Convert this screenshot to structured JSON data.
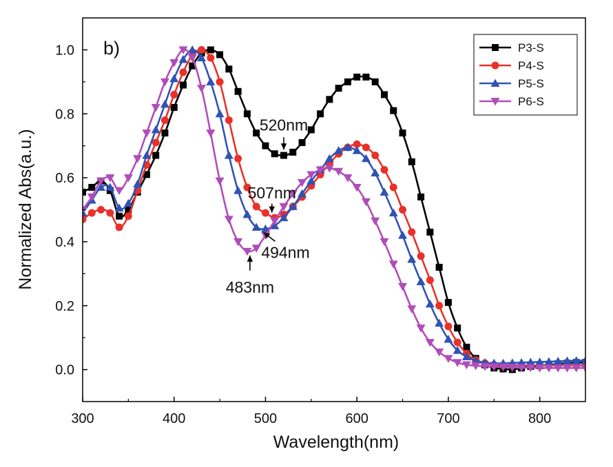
{
  "chart_data": {
    "type": "line",
    "panel_label": "b)",
    "xlabel": "Wavelength(nm)",
    "ylabel": "Normalized Abs(a.u.)",
    "xlim": [
      300,
      850
    ],
    "ylim": [
      -0.1,
      1.1
    ],
    "xticks": [
      300,
      400,
      500,
      600,
      700,
      800
    ],
    "yticks": [
      0.0,
      0.2,
      0.4,
      0.6,
      0.8,
      1.0
    ],
    "xtick_labels": [
      "300",
      "400",
      "500",
      "600",
      "700",
      "800"
    ],
    "ytick_labels": [
      "0.0",
      "0.2",
      "0.4",
      "0.6",
      "0.8",
      "1.0"
    ],
    "grid": false,
    "legend_position": "top-right",
    "series": [
      {
        "name": "P3-S",
        "color": "#000000",
        "marker": "square",
        "x": [
          300,
          310,
          320,
          330,
          340,
          350,
          360,
          370,
          380,
          390,
          400,
          410,
          420,
          430,
          440,
          450,
          460,
          470,
          480,
          490,
          500,
          510,
          520,
          530,
          540,
          550,
          560,
          570,
          580,
          590,
          600,
          610,
          620,
          630,
          640,
          650,
          660,
          670,
          680,
          690,
          700,
          710,
          720,
          730,
          740,
          750,
          760,
          770,
          780,
          790,
          800,
          810,
          820,
          830,
          840,
          850
        ],
        "y": [
          0.555,
          0.57,
          0.59,
          0.56,
          0.48,
          0.5,
          0.555,
          0.61,
          0.67,
          0.74,
          0.82,
          0.89,
          0.95,
          0.99,
          1.0,
          0.985,
          0.94,
          0.87,
          0.8,
          0.74,
          0.7,
          0.675,
          0.67,
          0.68,
          0.71,
          0.75,
          0.8,
          0.845,
          0.88,
          0.9,
          0.915,
          0.915,
          0.9,
          0.86,
          0.81,
          0.74,
          0.65,
          0.54,
          0.43,
          0.32,
          0.21,
          0.13,
          0.07,
          0.035,
          0.015,
          0.005,
          0.002,
          0.0,
          0.005,
          0.01,
          0.012,
          0.015,
          0.018,
          0.02,
          0.022,
          0.022
        ]
      },
      {
        "name": "P4-S",
        "color": "#e8312a",
        "marker": "circle",
        "x": [
          300,
          310,
          320,
          330,
          340,
          350,
          360,
          370,
          380,
          390,
          400,
          410,
          420,
          430,
          440,
          450,
          460,
          470,
          480,
          490,
          500,
          510,
          520,
          530,
          540,
          550,
          560,
          570,
          580,
          590,
          600,
          610,
          620,
          630,
          640,
          650,
          660,
          670,
          680,
          690,
          700,
          710,
          720,
          730,
          740,
          750,
          760,
          770,
          780,
          790,
          800,
          810,
          820,
          830,
          840,
          850
        ],
        "y": [
          0.47,
          0.49,
          0.5,
          0.49,
          0.445,
          0.48,
          0.56,
          0.64,
          0.71,
          0.78,
          0.86,
          0.93,
          0.985,
          1.0,
          0.975,
          0.9,
          0.78,
          0.66,
          0.57,
          0.51,
          0.49,
          0.475,
          0.485,
          0.51,
          0.54,
          0.575,
          0.61,
          0.645,
          0.675,
          0.695,
          0.705,
          0.695,
          0.67,
          0.625,
          0.57,
          0.5,
          0.43,
          0.355,
          0.28,
          0.2,
          0.135,
          0.085,
          0.05,
          0.03,
          0.02,
          0.015,
          0.013,
          0.013,
          0.013,
          0.013,
          0.013,
          0.013,
          0.013,
          0.013,
          0.013,
          0.013
        ]
      },
      {
        "name": "P5-S",
        "color": "#2f52b5",
        "marker": "triangle-up",
        "x": [
          300,
          310,
          320,
          330,
          340,
          350,
          360,
          370,
          380,
          390,
          400,
          410,
          420,
          430,
          440,
          450,
          460,
          470,
          480,
          490,
          500,
          510,
          520,
          530,
          540,
          550,
          560,
          570,
          580,
          590,
          600,
          610,
          620,
          630,
          640,
          650,
          660,
          670,
          680,
          690,
          700,
          710,
          720,
          730,
          740,
          750,
          760,
          770,
          780,
          790,
          800,
          810,
          820,
          830,
          840,
          850
        ],
        "y": [
          0.49,
          0.53,
          0.57,
          0.57,
          0.505,
          0.52,
          0.58,
          0.67,
          0.75,
          0.83,
          0.91,
          0.97,
          1.0,
          0.975,
          0.9,
          0.8,
          0.67,
          0.56,
          0.485,
          0.445,
          0.44,
          0.45,
          0.475,
          0.51,
          0.55,
          0.59,
          0.625,
          0.66,
          0.685,
          0.695,
          0.685,
          0.66,
          0.615,
          0.555,
          0.49,
          0.42,
          0.345,
          0.275,
          0.205,
          0.145,
          0.095,
          0.06,
          0.04,
          0.028,
          0.022,
          0.02,
          0.02,
          0.021,
          0.022,
          0.023,
          0.024,
          0.025,
          0.026,
          0.027,
          0.028,
          0.028
        ]
      },
      {
        "name": "P6-S",
        "color": "#b04db8",
        "marker": "triangle-down",
        "x": [
          300,
          310,
          320,
          330,
          340,
          350,
          360,
          370,
          380,
          390,
          400,
          410,
          420,
          430,
          440,
          450,
          460,
          470,
          480,
          490,
          500,
          510,
          520,
          530,
          540,
          550,
          560,
          570,
          580,
          590,
          600,
          610,
          620,
          630,
          640,
          650,
          660,
          670,
          680,
          690,
          700,
          710,
          720,
          730,
          740,
          750,
          760,
          770,
          780,
          790,
          800,
          810,
          820,
          830,
          840,
          850
        ],
        "y": [
          0.5,
          0.54,
          0.59,
          0.6,
          0.56,
          0.6,
          0.66,
          0.74,
          0.82,
          0.9,
          0.96,
          1.0,
          0.975,
          0.88,
          0.74,
          0.59,
          0.47,
          0.4,
          0.37,
          0.38,
          0.42,
          0.465,
          0.51,
          0.55,
          0.585,
          0.61,
          0.625,
          0.63,
          0.62,
          0.6,
          0.57,
          0.525,
          0.465,
          0.4,
          0.33,
          0.26,
          0.19,
          0.13,
          0.085,
          0.055,
          0.035,
          0.022,
          0.015,
          0.012,
          0.01,
          0.009,
          0.008,
          0.007,
          0.006,
          0.006,
          0.005,
          0.005,
          0.005,
          0.005,
          0.005,
          0.005
        ]
      }
    ],
    "annotations": [
      {
        "text": "520nm",
        "x": 520,
        "y": 0.675,
        "series": "P3-S"
      },
      {
        "text": "507nm",
        "x": 507,
        "y": 0.48,
        "series": "P4-S"
      },
      {
        "text": "494nm",
        "x": 494,
        "y": 0.44,
        "series": "P5-S"
      },
      {
        "text": "483nm",
        "x": 483,
        "y": 0.37,
        "series": "P6-S"
      }
    ]
  }
}
